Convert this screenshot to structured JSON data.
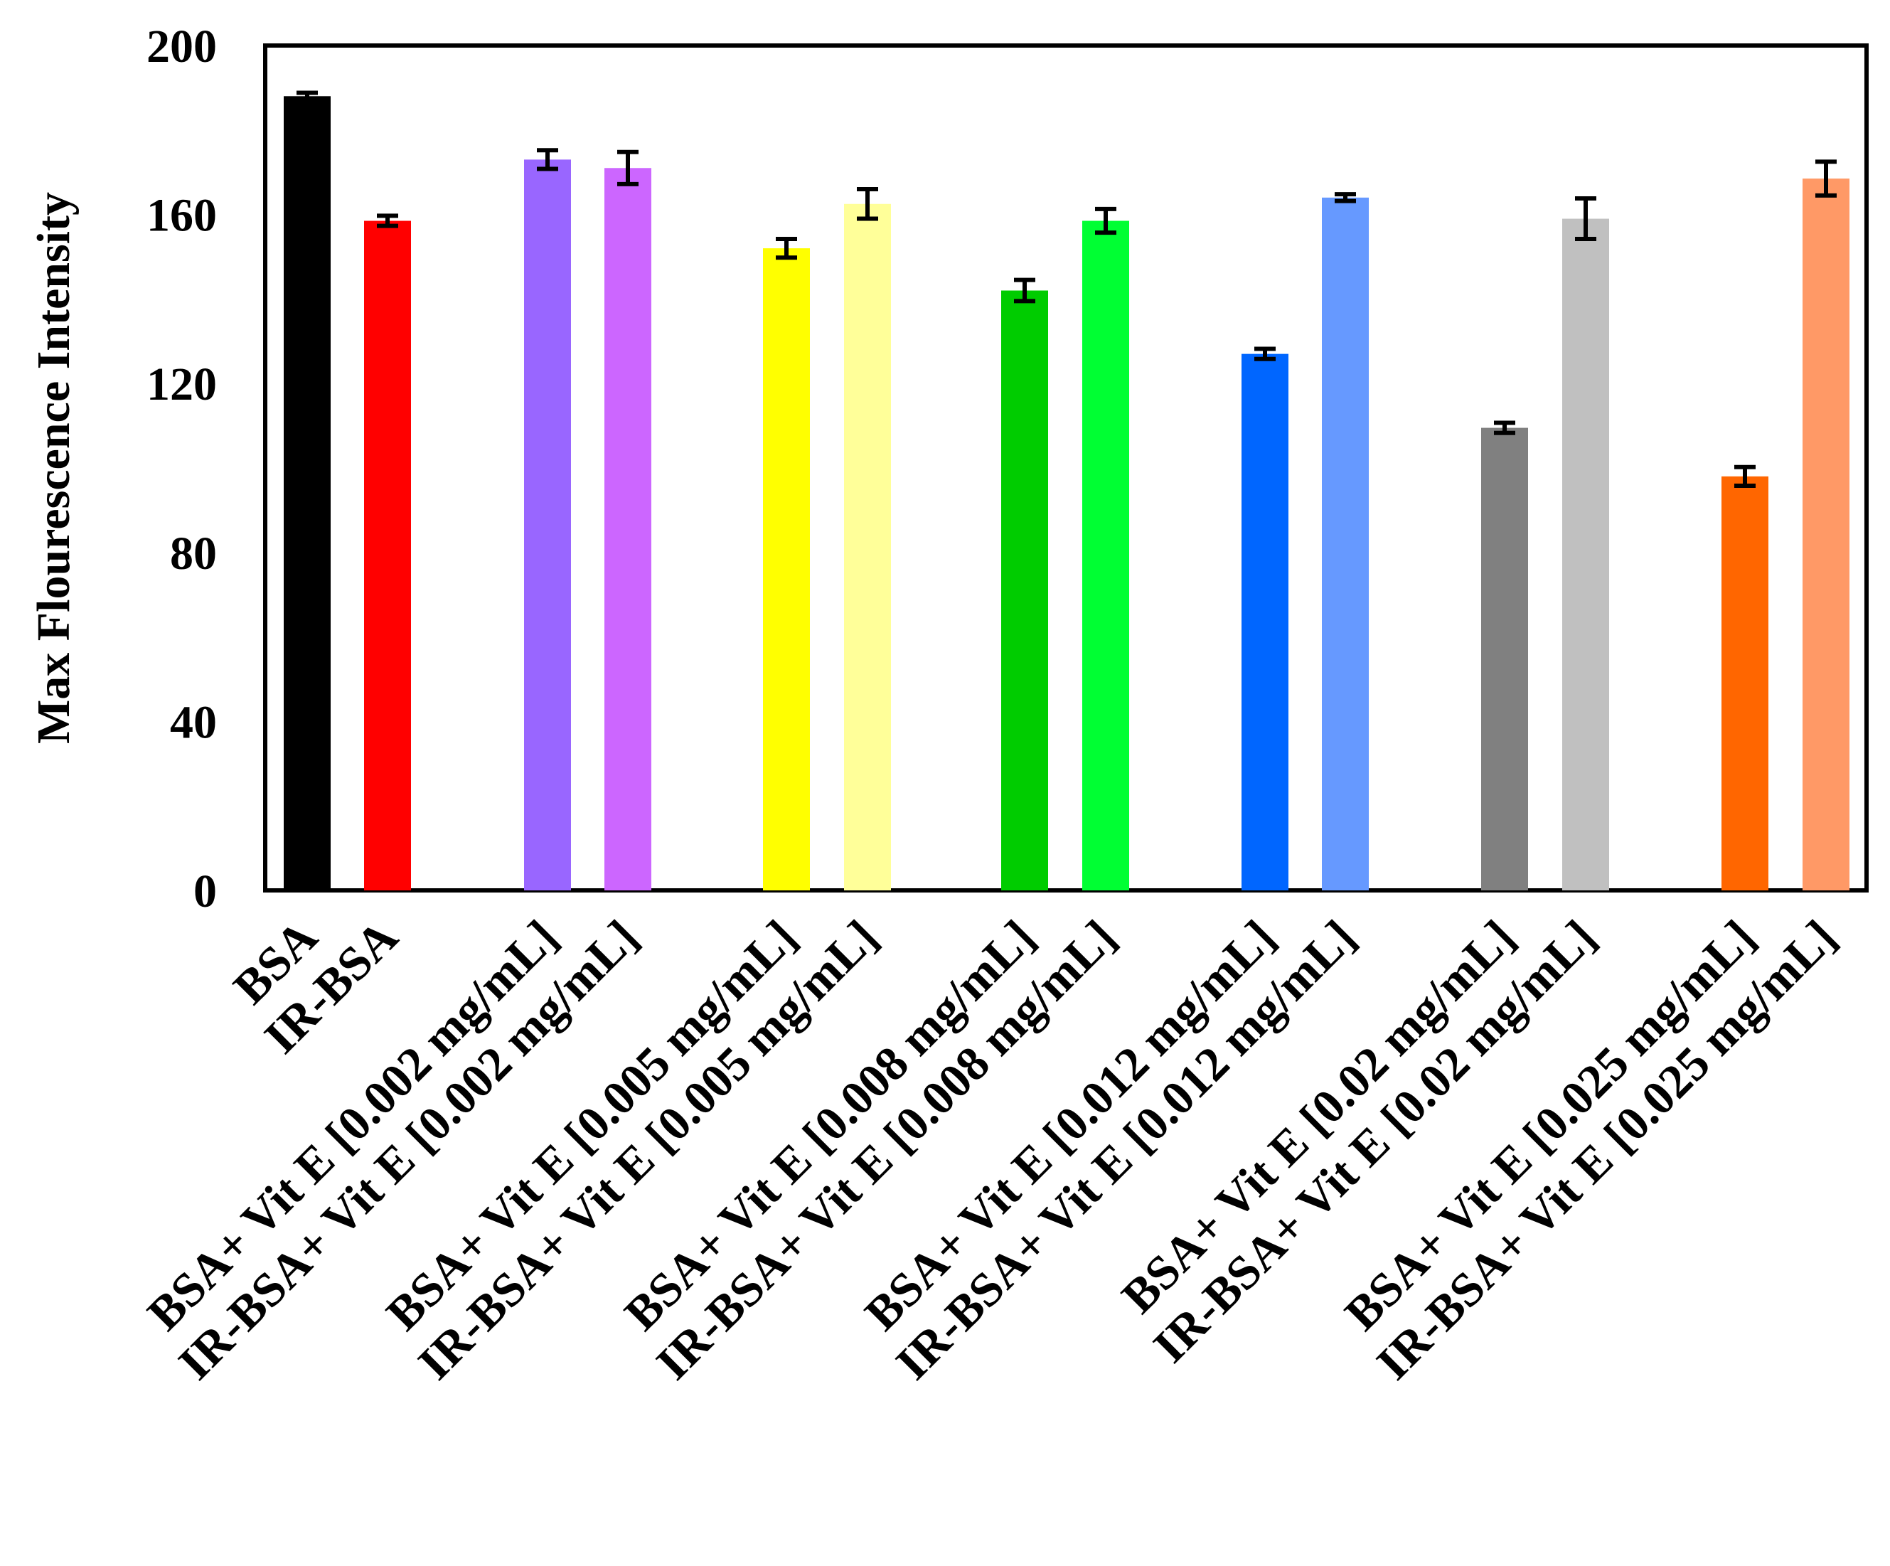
{
  "chart_data": {
    "type": "bar",
    "title": "",
    "xlabel": "",
    "ylabel": "Max Flourescence Intensity",
    "ylim": [
      0,
      200
    ],
    "yticks": [
      "0",
      "40",
      "80",
      "120",
      "160",
      "200"
    ],
    "categories": [
      "BSA",
      "IR-BSA",
      "BSA+ Vit E [0.002 mg/mL]",
      "IR-BSA+ Vit E [0.002 mg/mL]",
      "BSA+ Vit E [0.005 mg/mL]",
      "IR-BSA+ Vit E [0.005 mg/mL]",
      "BSA+ Vit E [0.008 mg/mL]",
      "IR-BSA+ Vit E [0.008 mg/mL]",
      "BSA+ Vit E [0.012 mg/mL]",
      "IR-BSA+ Vit E [0.012 mg/mL]",
      "BSA+ Vit E [0.02 mg/mL]",
      "IR-BSA+ Vit E [0.02 mg/mL]",
      "BSA+ Vit E [0.025 mg/mL]",
      "IR-BSA+ Vit E [0.025 mg/mL]"
    ],
    "values": [
      188,
      158.5,
      173,
      171,
      152,
      162.5,
      142,
      158.5,
      127,
      164,
      109.5,
      159,
      98,
      168.5
    ],
    "errors": [
      0.8,
      1.2,
      2.2,
      3.8,
      2.2,
      3.5,
      2.5,
      2.8,
      1.2,
      0.8,
      1.2,
      4.8,
      2.2,
      4.0
    ],
    "colors": [
      "#000000",
      "#ff0000",
      "#9966ff",
      "#cc66ff",
      "#ffff00",
      "#ffff99",
      "#00cc00",
      "#00ff33",
      "#0066ff",
      "#6699ff",
      "#808080",
      "#c0c0c0",
      "#ff6600",
      "#ff9966"
    ],
    "legend": "none",
    "grid": false
  }
}
